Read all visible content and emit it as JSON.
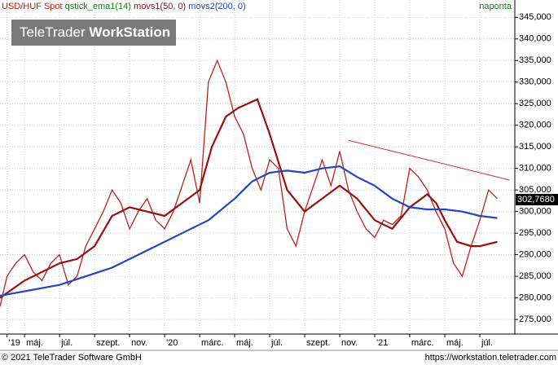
{
  "chart_data": {
    "type": "line",
    "title_parts": [
      "qstick_ema1(14)"
    ],
    "period": "naponta",
    "watermark": {
      "light": "TeleTrader ",
      "bold": "WorkStation"
    },
    "footer_left": "© 2021 TeleTrader Software GmbH",
    "footer_right": "https://workstation.teletrader.com",
    "xlim": [
      2.6,
      32
    ],
    "xticks": [
      {
        "value": 3,
        "label": "'19"
      },
      {
        "value": 4,
        "label": "máj."
      },
      {
        "value": 6,
        "label": "júl."
      },
      {
        "value": 8,
        "label": "szept."
      },
      {
        "value": 10,
        "label": "nov."
      },
      {
        "value": 12,
        "label": "'20"
      },
      {
        "value": 14,
        "label": "márc."
      },
      {
        "value": 16,
        "label": "máj."
      },
      {
        "value": 18,
        "label": "júl."
      },
      {
        "value": 20,
        "label": "szept."
      },
      {
        "value": 22,
        "label": "nov."
      },
      {
        "value": 24,
        "label": "'21"
      },
      {
        "value": 26,
        "label": "márc."
      },
      {
        "value": 28,
        "label": "máj."
      },
      {
        "value": 30,
        "label": "júl."
      }
    ],
    "ylim": [
      272,
      346
    ],
    "yticks": [
      {
        "value": 275,
        "label": "275,000"
      },
      {
        "value": 280,
        "label": "280,000"
      },
      {
        "value": 285,
        "label": "285,000"
      },
      {
        "value": 290,
        "label": "290,000"
      },
      {
        "value": 295,
        "label": "295,000"
      },
      {
        "value": 300,
        "label": "300,000"
      },
      {
        "value": 305,
        "label": "305,000"
      },
      {
        "value": 310,
        "label": "310,000"
      },
      {
        "value": 315,
        "label": "315,000"
      },
      {
        "value": 320,
        "label": "320,000"
      },
      {
        "value": 325,
        "label": "325,000"
      },
      {
        "value": 330,
        "label": "330,000"
      },
      {
        "value": 335,
        "label": "335,000"
      },
      {
        "value": 340,
        "label": "340,000"
      },
      {
        "value": 345,
        "label": "345,000"
      }
    ],
    "grid": true,
    "series": [
      {
        "name": "USD/HUF Spot",
        "color": "#b8231c",
        "x": [
          2.6,
          3,
          3.5,
          4,
          4.5,
          5,
          5.5,
          6,
          6.5,
          7,
          7.5,
          8,
          8.5,
          9,
          9.5,
          10,
          10.5,
          11,
          11.5,
          12,
          12.5,
          13,
          13.5,
          14,
          14.5,
          15,
          15.5,
          16,
          16.5,
          17,
          17.5,
          18,
          18.5,
          19,
          19.5,
          20,
          20.5,
          21,
          21.5,
          22,
          22.5,
          23,
          23.5,
          24,
          24.5,
          25,
          25.5,
          26,
          26.5,
          27,
          27.5,
          28,
          28.5,
          29,
          29.5,
          30,
          30.5,
          31
        ],
        "values": [
          278,
          285,
          288,
          290,
          286,
          284,
          288,
          290,
          283,
          285,
          292,
          296,
          300,
          305,
          302,
          296,
          300,
          303,
          298,
          296,
          300,
          306,
          312,
          302,
          330,
          335,
          330,
          322,
          318,
          310,
          305,
          312,
          310,
          296,
          292,
          300,
          306,
          312,
          306,
          314,
          305,
          300,
          296,
          294,
          298,
          297,
          299,
          310,
          308,
          305,
          300,
          296,
          288,
          285,
          292,
          298,
          305,
          303
        ]
      },
      {
        "name": "movs1(50, 0)",
        "color": "#9a1010",
        "x": [
          2.6,
          4,
          5,
          6,
          7,
          8,
          9,
          10,
          11,
          12,
          13,
          14,
          14.7,
          15.5,
          16.2,
          17.3,
          18,
          19,
          20,
          21,
          22,
          23,
          24,
          25,
          26,
          27,
          27.5,
          28,
          28.7,
          29.5,
          30,
          31
        ],
        "values": [
          280,
          284,
          286,
          288,
          289,
          292,
          299,
          301,
          300,
          299,
          302,
          305,
          315,
          322,
          324,
          326,
          318,
          305,
          300,
          303,
          306,
          303,
          298,
          296,
          301,
          304,
          302,
          298,
          293,
          292,
          292,
          293
        ]
      },
      {
        "name": "movs2(200, 0)",
        "color": "#2347c0",
        "x": [
          2.6,
          6,
          9,
          11,
          13,
          14.5,
          16,
          17,
          18,
          19,
          20,
          21,
          22,
          23,
          24,
          25,
          26,
          27,
          28,
          29,
          30,
          31
        ],
        "values": [
          280.5,
          283,
          287,
          291,
          295,
          298,
          303,
          307,
          309,
          309.5,
          309,
          310,
          310.5,
          308,
          306,
          303,
          301,
          300.5,
          300.5,
          300,
          299,
          298.5
        ]
      }
    ],
    "trendline": {
      "color": "#d03030",
      "x": [
        22.5,
        31.7
      ],
      "values": [
        316.5,
        307.3
      ]
    },
    "last": {
      "value": 302.768,
      "label": "302,7680"
    }
  }
}
